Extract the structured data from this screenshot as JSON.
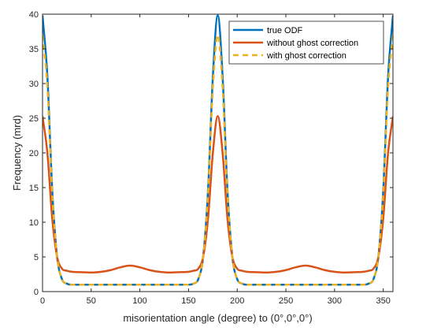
{
  "chart_data": {
    "type": "line",
    "xlabel": "misorientation angle (degree) to (0°,0°,0°)",
    "ylabel": "Frequency (mrd)",
    "xlim": [
      0,
      360
    ],
    "ylim": [
      0,
      40
    ],
    "xticks": [
      0,
      50,
      100,
      150,
      200,
      250,
      300,
      350
    ],
    "yticks": [
      0,
      5,
      10,
      15,
      20,
      25,
      30,
      35,
      40
    ],
    "grid": false,
    "legend_position": "top-right",
    "series": [
      {
        "name": "true ODF",
        "color": "#0072BD",
        "dash": "solid",
        "x": [
          0,
          5,
          10,
          15,
          20,
          25,
          30,
          40,
          60,
          90,
          120,
          140,
          150,
          155,
          160,
          165,
          170,
          175,
          180,
          185,
          190,
          195,
          200,
          205,
          210,
          220,
          240,
          270,
          300,
          320,
          330,
          335,
          340,
          345,
          350,
          355,
          360
        ],
        "y": [
          39.8,
          31.0,
          14.5,
          5.0,
          1.8,
          1.15,
          1.0,
          1.0,
          1.0,
          1.0,
          1.0,
          1.0,
          1.0,
          1.15,
          1.8,
          5.0,
          14.5,
          31.0,
          39.8,
          31.0,
          14.5,
          5.0,
          1.8,
          1.15,
          1.0,
          1.0,
          1.0,
          1.0,
          1.0,
          1.0,
          1.0,
          1.15,
          1.8,
          5.0,
          14.5,
          31.0,
          39.8
        ]
      },
      {
        "name": "without ghost correction",
        "color": "#D95319",
        "dash": "solid",
        "x": [
          0,
          5,
          10,
          15,
          20,
          25,
          30,
          40,
          50,
          60,
          70,
          80,
          90,
          100,
          110,
          120,
          130,
          140,
          150,
          155,
          160,
          165,
          170,
          175,
          180,
          185,
          190,
          195,
          200,
          205,
          210,
          220,
          230,
          240,
          250,
          260,
          270,
          280,
          290,
          300,
          310,
          320,
          330,
          335,
          340,
          345,
          350,
          355,
          360
        ],
        "y": [
          25.3,
          20.0,
          10.5,
          5.0,
          3.3,
          3.0,
          2.85,
          2.8,
          2.75,
          2.85,
          3.1,
          3.5,
          3.75,
          3.5,
          3.1,
          2.85,
          2.75,
          2.8,
          2.85,
          3.0,
          3.3,
          5.0,
          10.5,
          20.0,
          25.3,
          20.0,
          10.5,
          5.0,
          3.3,
          3.0,
          2.85,
          2.8,
          2.75,
          2.85,
          3.1,
          3.5,
          3.75,
          3.5,
          3.1,
          2.85,
          2.75,
          2.8,
          2.85,
          3.0,
          3.3,
          5.0,
          10.5,
          20.0,
          25.3
        ]
      },
      {
        "name": "with ghost correction",
        "color": "#EDB120",
        "dash": "dashed",
        "x": [
          0,
          5,
          10,
          15,
          20,
          25,
          30,
          40,
          60,
          90,
          120,
          140,
          150,
          155,
          160,
          165,
          170,
          175,
          180,
          185,
          190,
          195,
          200,
          205,
          210,
          220,
          240,
          270,
          300,
          320,
          330,
          335,
          340,
          345,
          350,
          355,
          360
        ],
        "y": [
          37.0,
          29.5,
          14.0,
          5.0,
          1.8,
          1.15,
          1.0,
          1.0,
          1.0,
          1.0,
          1.0,
          1.0,
          1.0,
          1.15,
          1.8,
          5.0,
          14.0,
          29.5,
          37.0,
          29.5,
          14.0,
          5.0,
          1.8,
          1.15,
          1.0,
          1.0,
          1.0,
          1.0,
          1.0,
          1.0,
          1.0,
          1.15,
          1.8,
          5.0,
          14.0,
          29.5,
          37.0
        ]
      }
    ]
  }
}
